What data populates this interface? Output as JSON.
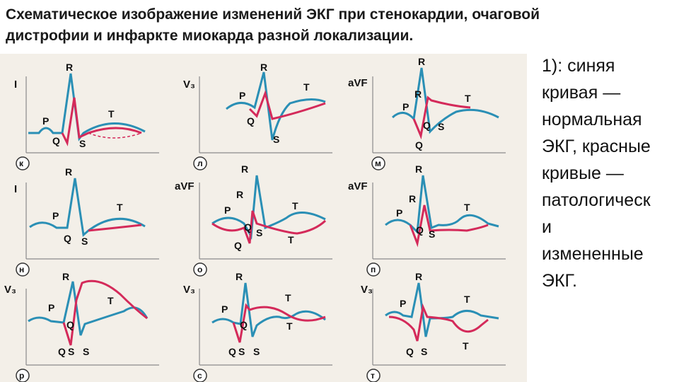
{
  "title": {
    "line1": "Схематическое изображение изменений ЭКГ при стенокардии, очаговой",
    "line2": "дистрофии и инфаркте миокарда разной локализации."
  },
  "description": {
    "lines": [
      "1): синяя",
      "кривая —",
      "нормальная",
      "ЭКГ, красные",
      "кривые —",
      "патологическ",
      "и",
      "измененные",
      "ЭКГ."
    ]
  },
  "colors": {
    "normal": "#2a8fb5",
    "pathologic": "#d42a5a",
    "background": "#f3efe8"
  },
  "panels": [
    {
      "id": "k",
      "circle": "к",
      "lead": "I",
      "waves": [
        "P",
        "R",
        "Q",
        "S",
        "T"
      ]
    },
    {
      "id": "l",
      "circle": "л",
      "lead": "V₃",
      "waves": [
        "P",
        "R",
        "Q",
        "S",
        "T"
      ]
    },
    {
      "id": "m",
      "circle": "м",
      "lead": "aVF",
      "waves": [
        "P",
        "R",
        "R",
        "Q",
        "S",
        "Q",
        "T"
      ]
    },
    {
      "id": "n",
      "circle": "н",
      "lead": "I",
      "waves": [
        "P",
        "R",
        "Q",
        "S",
        "T"
      ]
    },
    {
      "id": "o",
      "circle": "о",
      "lead": "aVF",
      "waves": [
        "P",
        "R",
        "R",
        "Q",
        "S",
        "Q",
        "T",
        "T"
      ]
    },
    {
      "id": "p",
      "circle": "п",
      "lead": "aVF",
      "waves": [
        "P",
        "R",
        "R",
        "Q",
        "S",
        "T"
      ]
    },
    {
      "id": "r",
      "circle": "р",
      "lead": "V₃",
      "waves": [
        "P",
        "R",
        "T",
        "Q",
        "Q",
        "S",
        "S"
      ]
    },
    {
      "id": "s",
      "circle": "с",
      "lead": "V₃",
      "waves": [
        "P",
        "R",
        "T",
        "Q",
        "Q",
        "S",
        "S",
        "T"
      ]
    },
    {
      "id": "t",
      "circle": "т",
      "lead": "V₃",
      "waves": [
        "P",
        "R",
        "T",
        "Q",
        "S",
        "T"
      ]
    }
  ]
}
